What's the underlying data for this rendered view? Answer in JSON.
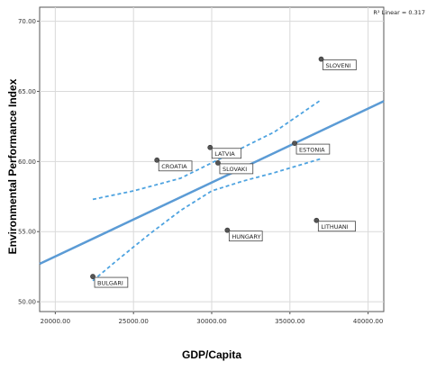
{
  "chart_data": {
    "type": "scatter",
    "title": "",
    "xlabel": "GDP/Capita",
    "ylabel": "Environmental Performance Index",
    "xlim": [
      19000,
      41000
    ],
    "ylim": [
      49.3,
      71.0
    ],
    "xticks": [
      "20000.00",
      "25000.00",
      "30000.00",
      "35000.00",
      "40000.00"
    ],
    "xtick_values": [
      20000,
      25000,
      30000,
      35000,
      40000
    ],
    "yticks": [
      "50.00",
      "55.00",
      "60.00",
      "65.00",
      "70.00"
    ],
    "ytick_values": [
      50,
      55,
      60,
      65,
      70
    ],
    "grid": true,
    "r2_label": "R² Linear = 0.317",
    "points": [
      {
        "label": "BULGARI",
        "x": 22400,
        "y": 51.8
      },
      {
        "label": "CROATIA",
        "x": 26500,
        "y": 60.1
      },
      {
        "label": "LATVIA",
        "x": 29900,
        "y": 61.0
      },
      {
        "label": "SLOVAKI",
        "x": 30400,
        "y": 59.9
      },
      {
        "label": "HUNGARY",
        "x": 31000,
        "y": 55.1
      },
      {
        "label": "ESTONIA",
        "x": 35300,
        "y": 61.3
      },
      {
        "label": "SLOVENI",
        "x": 37000,
        "y": 67.3
      },
      {
        "label": "LITHUANI",
        "x": 36700,
        "y": 55.8
      }
    ],
    "fit_line": {
      "x": [
        19000,
        41000
      ],
      "y": [
        52.7,
        64.3
      ]
    },
    "ci_upper": {
      "x": [
        22400,
        25000,
        28000,
        30000,
        32000,
        34000,
        37000
      ],
      "y": [
        57.3,
        57.9,
        58.8,
        59.9,
        61.0,
        62.1,
        64.4
      ]
    },
    "ci_lower": {
      "x": [
        22400,
        24000,
        26000,
        28000,
        30000,
        32000,
        34000,
        37000
      ],
      "y": [
        51.5,
        53.0,
        54.8,
        56.5,
        57.9,
        58.6,
        59.2,
        60.2
      ]
    },
    "colors": {
      "fit": "#5b9bd5",
      "ci": "#4ea3e0",
      "point": "#555555",
      "grid": "#d9d9d9"
    }
  }
}
